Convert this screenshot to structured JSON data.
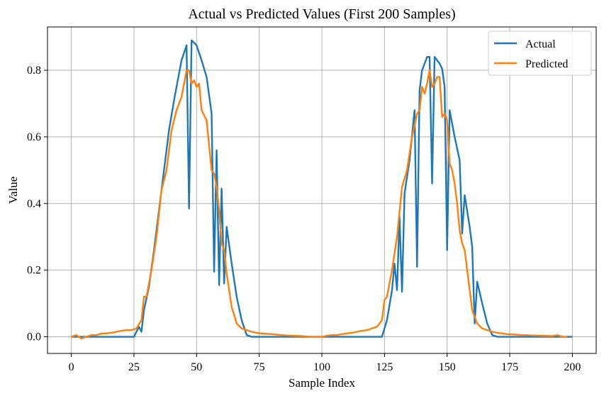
{
  "chart_data": {
    "type": "line",
    "title": "Actual vs Predicted Values (First 200 Samples)",
    "xlabel": "Sample Index",
    "ylabel": "Value",
    "xlim": [
      -9.5,
      209.5
    ],
    "ylim": [
      -0.05,
      0.93
    ],
    "xticks": [
      0,
      25,
      50,
      75,
      100,
      125,
      150,
      175,
      200
    ],
    "yticks": [
      0.0,
      0.2,
      0.4,
      0.6,
      0.8
    ],
    "ytick_labels": [
      "0.0",
      "0.2",
      "0.4",
      "0.6",
      "0.8"
    ],
    "grid": true,
    "legend_position": "top-right",
    "series": [
      {
        "name": "Actual",
        "color": "#1f77b4",
        "points": [
          [
            0,
            0
          ],
          [
            25,
            0
          ],
          [
            27,
            0.03
          ],
          [
            28,
            0.015
          ],
          [
            29,
            0.08
          ],
          [
            31,
            0.15
          ],
          [
            33,
            0.26
          ],
          [
            35,
            0.38
          ],
          [
            37,
            0.5
          ],
          [
            39,
            0.62
          ],
          [
            41,
            0.71
          ],
          [
            43,
            0.79
          ],
          [
            44,
            0.83
          ],
          [
            46,
            0.875
          ],
          [
            47,
            0.385
          ],
          [
            48,
            0.89
          ],
          [
            50,
            0.875
          ],
          [
            52,
            0.83
          ],
          [
            54,
            0.78
          ],
          [
            56,
            0.67
          ],
          [
            57,
            0.195
          ],
          [
            58,
            0.56
          ],
          [
            59,
            0.155
          ],
          [
            60,
            0.445
          ],
          [
            61,
            0.16
          ],
          [
            62,
            0.33
          ],
          [
            64,
            0.22
          ],
          [
            66,
            0.12
          ],
          [
            68,
            0.05
          ],
          [
            70,
            0.005
          ],
          [
            72,
            0
          ],
          [
            124,
            0
          ],
          [
            126,
            0.05
          ],
          [
            128,
            0.14
          ],
          [
            129,
            0.22
          ],
          [
            130,
            0.14
          ],
          [
            131,
            0.36
          ],
          [
            132,
            0.135
          ],
          [
            133,
            0.43
          ],
          [
            135,
            0.53
          ],
          [
            137,
            0.68
          ],
          [
            138,
            0.21
          ],
          [
            139,
            0.74
          ],
          [
            140,
            0.8
          ],
          [
            142,
            0.84
          ],
          [
            143,
            0.84
          ],
          [
            144,
            0.46
          ],
          [
            145,
            0.84
          ],
          [
            147,
            0.82
          ],
          [
            148,
            0.805
          ],
          [
            149,
            0.75
          ],
          [
            150,
            0.26
          ],
          [
            151,
            0.68
          ],
          [
            153,
            0.6
          ],
          [
            155,
            0.53
          ],
          [
            156,
            0.31
          ],
          [
            157,
            0.425
          ],
          [
            159,
            0.33
          ],
          [
            160,
            0.27
          ],
          [
            161,
            0.04
          ],
          [
            162,
            0.165
          ],
          [
            164,
            0.1
          ],
          [
            166,
            0.04
          ],
          [
            168,
            0.005
          ],
          [
            170,
            0
          ],
          [
            200,
            0
          ]
        ]
      },
      {
        "name": "Predicted",
        "color": "#ff7f0e",
        "points": [
          [
            0,
            0
          ],
          [
            2,
            0.005
          ],
          [
            4,
            -0.005
          ],
          [
            6,
            0
          ],
          [
            8,
            0.005
          ],
          [
            10,
            0.005
          ],
          [
            12,
            0.01
          ],
          [
            14,
            0.01
          ],
          [
            16,
            0.012
          ],
          [
            18,
            0.015
          ],
          [
            20,
            0.018
          ],
          [
            22,
            0.02
          ],
          [
            24,
            0.02
          ],
          [
            26,
            0.025
          ],
          [
            28,
            0.05
          ],
          [
            29,
            0.12
          ],
          [
            30,
            0.12
          ],
          [
            32,
            0.2
          ],
          [
            34,
            0.3
          ],
          [
            36,
            0.44
          ],
          [
            38,
            0.5
          ],
          [
            40,
            0.62
          ],
          [
            42,
            0.68
          ],
          [
            44,
            0.72
          ],
          [
            46,
            0.8
          ],
          [
            47,
            0.8
          ],
          [
            48,
            0.76
          ],
          [
            49,
            0.77
          ],
          [
            50,
            0.75
          ],
          [
            51,
            0.76
          ],
          [
            52,
            0.68
          ],
          [
            54,
            0.65
          ],
          [
            56,
            0.5
          ],
          [
            57,
            0.49
          ],
          [
            58,
            0.45
          ],
          [
            59,
            0.38
          ],
          [
            60,
            0.28
          ],
          [
            61,
            0.26
          ],
          [
            62,
            0.19
          ],
          [
            64,
            0.09
          ],
          [
            66,
            0.04
          ],
          [
            68,
            0.025
          ],
          [
            70,
            0.02
          ],
          [
            72,
            0.015
          ],
          [
            74,
            0.012
          ],
          [
            76,
            0.01
          ],
          [
            80,
            0.008
          ],
          [
            84,
            0.005
          ],
          [
            88,
            0.003
          ],
          [
            92,
            0.002
          ],
          [
            96,
            0
          ],
          [
            100,
            0
          ],
          [
            102,
            0.003
          ],
          [
            104,
            0.005
          ],
          [
            106,
            0.005
          ],
          [
            108,
            0.008
          ],
          [
            110,
            0.01
          ],
          [
            112,
            0.012
          ],
          [
            114,
            0.015
          ],
          [
            116,
            0.018
          ],
          [
            118,
            0.02
          ],
          [
            120,
            0.025
          ],
          [
            122,
            0.03
          ],
          [
            124,
            0.05
          ],
          [
            125,
            0.11
          ],
          [
            126,
            0.12
          ],
          [
            128,
            0.2
          ],
          [
            130,
            0.3
          ],
          [
            132,
            0.45
          ],
          [
            134,
            0.5
          ],
          [
            136,
            0.6
          ],
          [
            138,
            0.67
          ],
          [
            139,
            0.68
          ],
          [
            140,
            0.75
          ],
          [
            141,
            0.73
          ],
          [
            142,
            0.76
          ],
          [
            143,
            0.8
          ],
          [
            144,
            0.75
          ],
          [
            145,
            0.76
          ],
          [
            146,
            0.78
          ],
          [
            147,
            0.78
          ],
          [
            148,
            0.66
          ],
          [
            149,
            0.67
          ],
          [
            150,
            0.65
          ],
          [
            151,
            0.52
          ],
          [
            152,
            0.5
          ],
          [
            153,
            0.46
          ],
          [
            154,
            0.4
          ],
          [
            155,
            0.32
          ],
          [
            156,
            0.28
          ],
          [
            157,
            0.26
          ],
          [
            158,
            0.2
          ],
          [
            160,
            0.08
          ],
          [
            162,
            0.04
          ],
          [
            164,
            0.025
          ],
          [
            166,
            0.02
          ],
          [
            168,
            0.015
          ],
          [
            170,
            0.012
          ],
          [
            172,
            0.01
          ],
          [
            174,
            0.008
          ],
          [
            176,
            0.007
          ],
          [
            178,
            0.006
          ],
          [
            180,
            0.005
          ],
          [
            184,
            0.004
          ],
          [
            188,
            0.003
          ],
          [
            192,
            0.002
          ],
          [
            194,
            0.005
          ],
          [
            196,
            0
          ],
          [
            198,
            0
          ]
        ]
      }
    ]
  }
}
